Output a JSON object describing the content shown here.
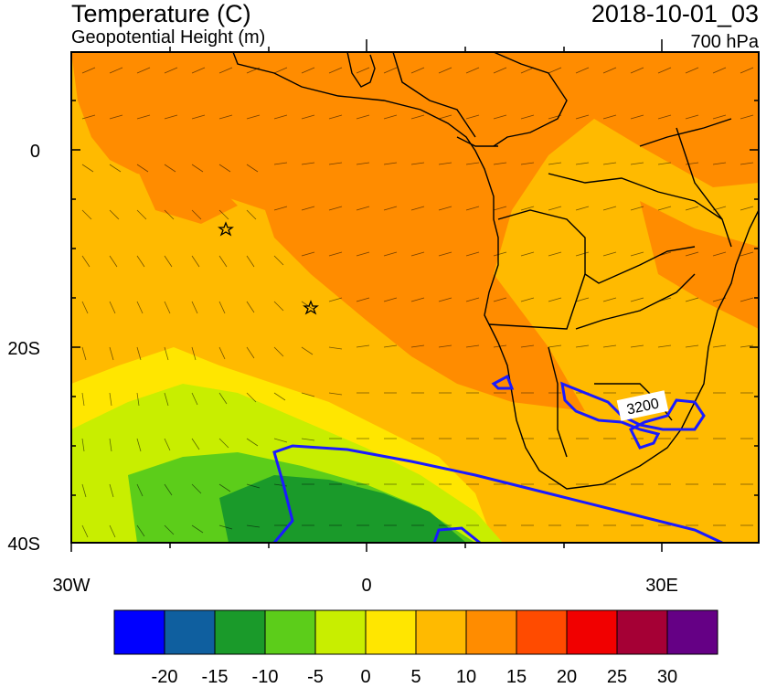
{
  "header": {
    "title": "Temperature (C)",
    "subtitle": "Geopotential Height (m)",
    "datetime": "2018-10-01_03",
    "level": "700 hPa"
  },
  "axes": {
    "lat_labels": [
      "0",
      "20S",
      "40S"
    ],
    "lon_labels": [
      "30W",
      "0",
      "30E"
    ]
  },
  "contour_label": "3200",
  "colorbar": {
    "colors": [
      "#0000ff",
      "#0f5f9f",
      "#1a9a2a",
      "#5ccd1a",
      "#c8ee00",
      "#ffe600",
      "#ffba00",
      "#ff8c00",
      "#ff4b00",
      "#f10000",
      "#a50035",
      "#650085"
    ],
    "labels": [
      "-20",
      "-15",
      "-10",
      "-5",
      "0",
      "5",
      "10",
      "15",
      "20",
      "25",
      "30"
    ]
  }
}
